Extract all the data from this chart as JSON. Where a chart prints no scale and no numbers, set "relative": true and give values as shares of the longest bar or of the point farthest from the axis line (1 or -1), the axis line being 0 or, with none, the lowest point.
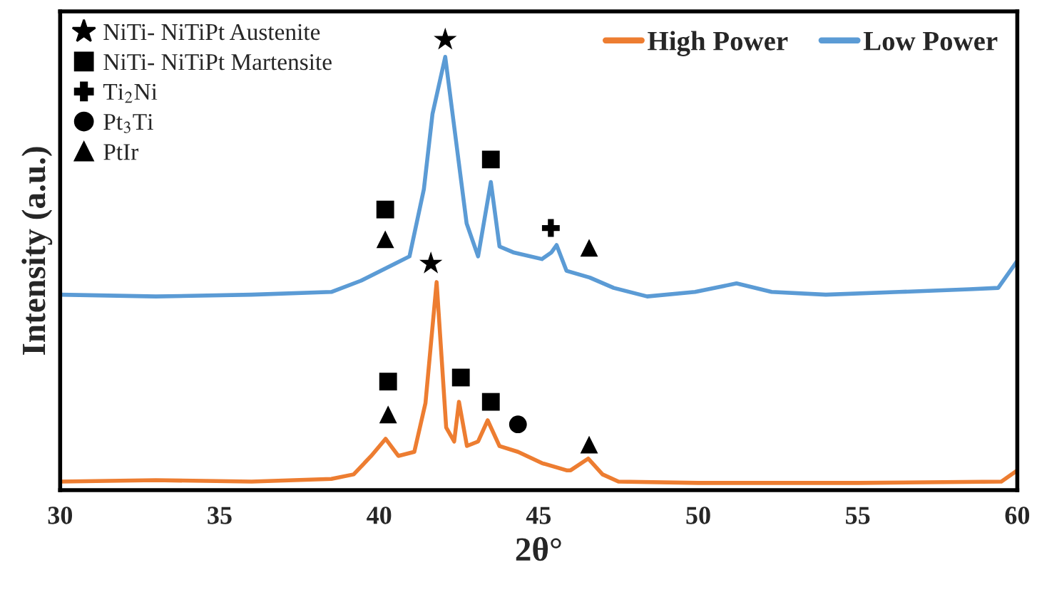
{
  "chart_data": {
    "type": "line",
    "relative": true,
    "xlabel": "2θ°",
    "ylabel": "Intensity (a.u.)",
    "xlim": [
      30,
      60
    ],
    "xticks": [
      30,
      35,
      40,
      45,
      50,
      55,
      60
    ],
    "grid": false,
    "legend": "top right",
    "series": [
      {
        "name": "High Power",
        "color": "#ed7d31",
        "x": [
          30,
          33,
          36,
          38.5,
          39.2,
          39.75,
          40.2,
          40.6,
          41.1,
          41.45,
          41.8,
          42.1,
          42.35,
          42.5,
          42.75,
          43.1,
          43.4,
          43.77,
          44.35,
          45.1,
          45.87,
          46.0,
          46.55,
          47.0,
          47.5,
          50,
          55,
          59.5,
          60
        ],
        "values": [
          0.019,
          0.022,
          0.019,
          0.025,
          0.035,
          0.076,
          0.114,
          0.076,
          0.085,
          0.193,
          0.462,
          0.139,
          0.108,
          0.196,
          0.098,
          0.108,
          0.155,
          0.098,
          0.085,
          0.06,
          0.044,
          0.044,
          0.07,
          0.035,
          0.019,
          0.016,
          0.016,
          0.019,
          0.044
        ]
      },
      {
        "name": "Low Power",
        "color": "#5b9bd5",
        "x": [
          30,
          33,
          36,
          38.5,
          39.43,
          40.5,
          40.95,
          41.4,
          41.67,
          42.07,
          42.34,
          42.74,
          43.1,
          43.5,
          43.77,
          44.2,
          45.1,
          45.4,
          45.56,
          45.87,
          46.6,
          47.35,
          48.4,
          49.9,
          51.2,
          52.3,
          54.0,
          56.3,
          58.5,
          59.4,
          60
        ],
        "values": [
          0.434,
          0.43,
          0.434,
          0.44,
          0.465,
          0.503,
          0.519,
          0.668,
          0.835,
          0.962,
          0.813,
          0.592,
          0.519,
          0.684,
          0.541,
          0.528,
          0.513,
          0.528,
          0.544,
          0.487,
          0.472,
          0.449,
          0.43,
          0.44,
          0.459,
          0.44,
          0.434,
          0.44,
          0.446,
          0.449,
          0.509
        ]
      },
      {
        "name": "NiTi- NiTiPt Austenite",
        "type": "scatter",
        "marker": "star",
        "color": "#000000",
        "x": [
          42.07,
          41.62
        ],
        "values": [
          1.0,
          0.503
        ]
      },
      {
        "name": "NiTi- NiTiPt Martensite",
        "type": "scatter",
        "marker": "square",
        "color": "#000000",
        "x": [
          43.5,
          40.19,
          40.28,
          42.56,
          43.5
        ],
        "values": [
          0.734,
          0.623,
          0.241,
          0.25,
          0.196
        ]
      },
      {
        "name": "Ti$_{2}$Ni",
        "type": "scatter",
        "marker": "cross",
        "color": "#000000",
        "x": [
          45.38
        ],
        "values": [
          0.582
        ]
      },
      {
        "name": "Pt$_{3}$Ti",
        "type": "scatter",
        "marker": "circle",
        "color": "#000000",
        "x": [
          44.35
        ],
        "values": [
          0.146
        ]
      },
      {
        "name": "PtIr",
        "type": "scatter",
        "marker": "triangle",
        "color": "#000000",
        "x": [
          40.19,
          46.58,
          40.28,
          46.58
        ],
        "values": [
          0.557,
          0.538,
          0.168,
          0.101
        ]
      }
    ]
  }
}
